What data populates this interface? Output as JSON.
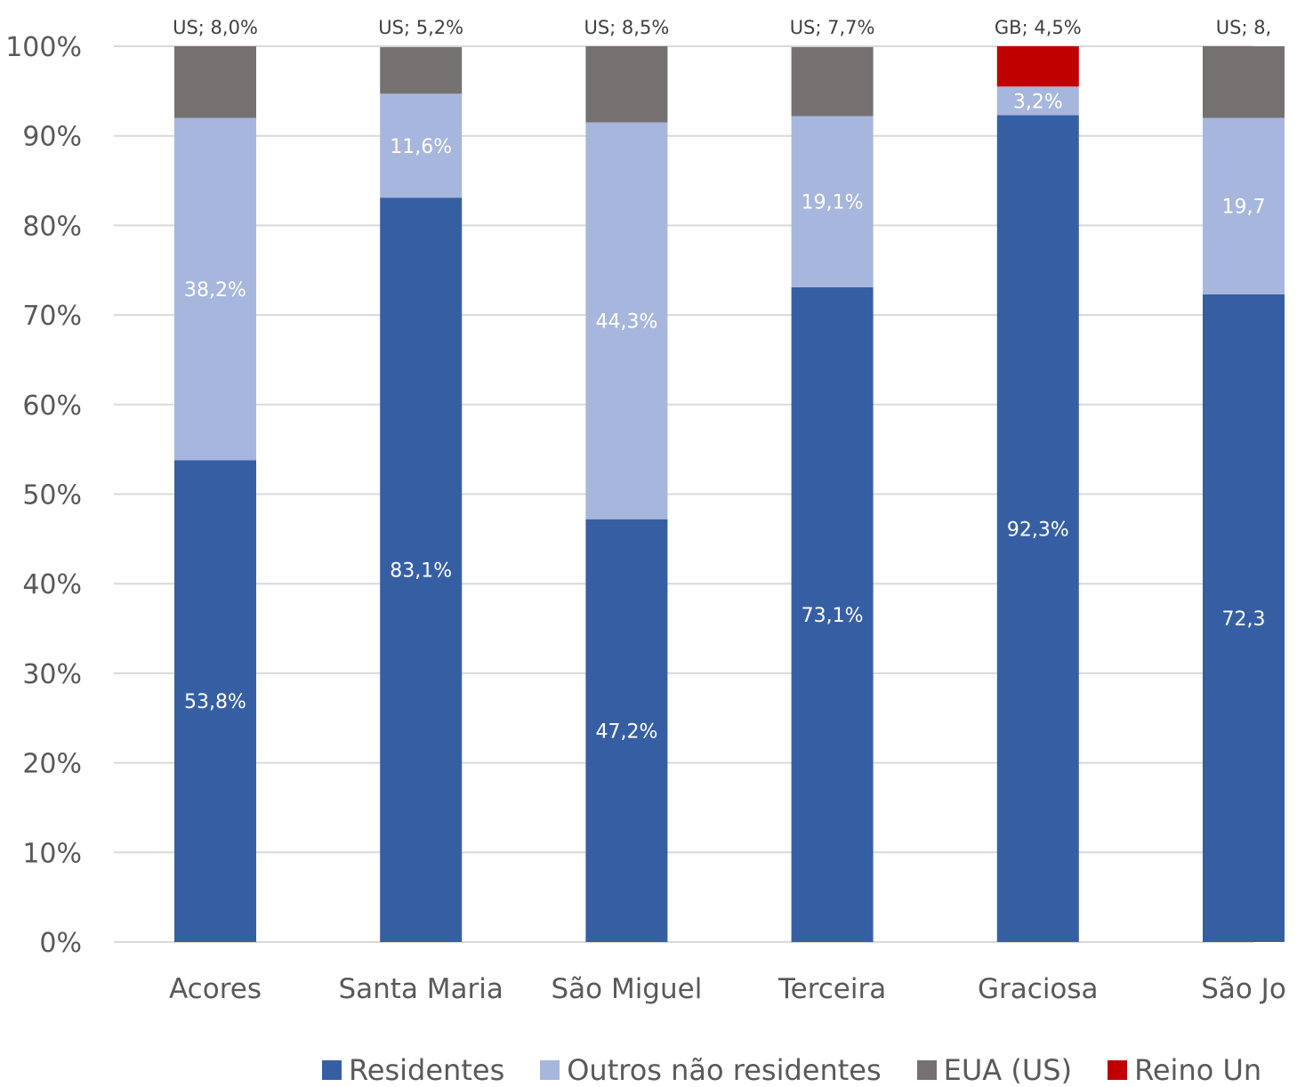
{
  "chart_data": {
    "type": "bar",
    "stacked": "percent",
    "categories": [
      "Acores",
      "Santa Maria",
      "São Miguel",
      "Terceira",
      "Graciosa",
      "São Jo"
    ],
    "series": [
      {
        "name": "Residentes",
        "color": "#365fa3",
        "values": [
          53.8,
          83.1,
          47.2,
          73.1,
          92.3,
          72.3
        ]
      },
      {
        "name": "Outros não residentes",
        "color": "#a7b6dc",
        "values": [
          38.2,
          11.6,
          44.3,
          19.1,
          3.2,
          19.7
        ]
      },
      {
        "name": "EUA (US)",
        "color": "#757171",
        "values": [
          8.0,
          5.2,
          8.5,
          7.7,
          null,
          8.0
        ]
      },
      {
        "name": "Reino Un",
        "color": "#c00000",
        "values": [
          null,
          null,
          null,
          null,
          4.5,
          null
        ]
      }
    ],
    "segment_labels": [
      [
        "53,8%",
        "38,2%",
        "US; 8,0%"
      ],
      [
        "83,1%",
        "11,6%",
        "US; 5,2%"
      ],
      [
        "47,2%",
        "44,3%",
        "US; 8,5%"
      ],
      [
        "73,1%",
        "19,1%",
        "US; 7,7%"
      ],
      [
        "92,3%",
        "3,2%",
        "GB; 4,5%"
      ],
      [
        "72,3",
        "19,7",
        "US; 8,"
      ]
    ],
    "yaxis": {
      "ticks": [
        0,
        10,
        20,
        30,
        40,
        50,
        60,
        70,
        80,
        90,
        100
      ],
      "tick_labels": [
        "0%",
        "10%",
        "20%",
        "30%",
        "40%",
        "50%",
        "60%",
        "70%",
        "80%",
        "90%",
        "100%"
      ]
    },
    "ylim": [
      0,
      100
    ],
    "grid": true,
    "legend_position": "bottom",
    "colors": {
      "grid": "#d9d9d9",
      "axis_text": "#595959",
      "top_label": "#404040",
      "inner_label": "#ffffff"
    }
  }
}
